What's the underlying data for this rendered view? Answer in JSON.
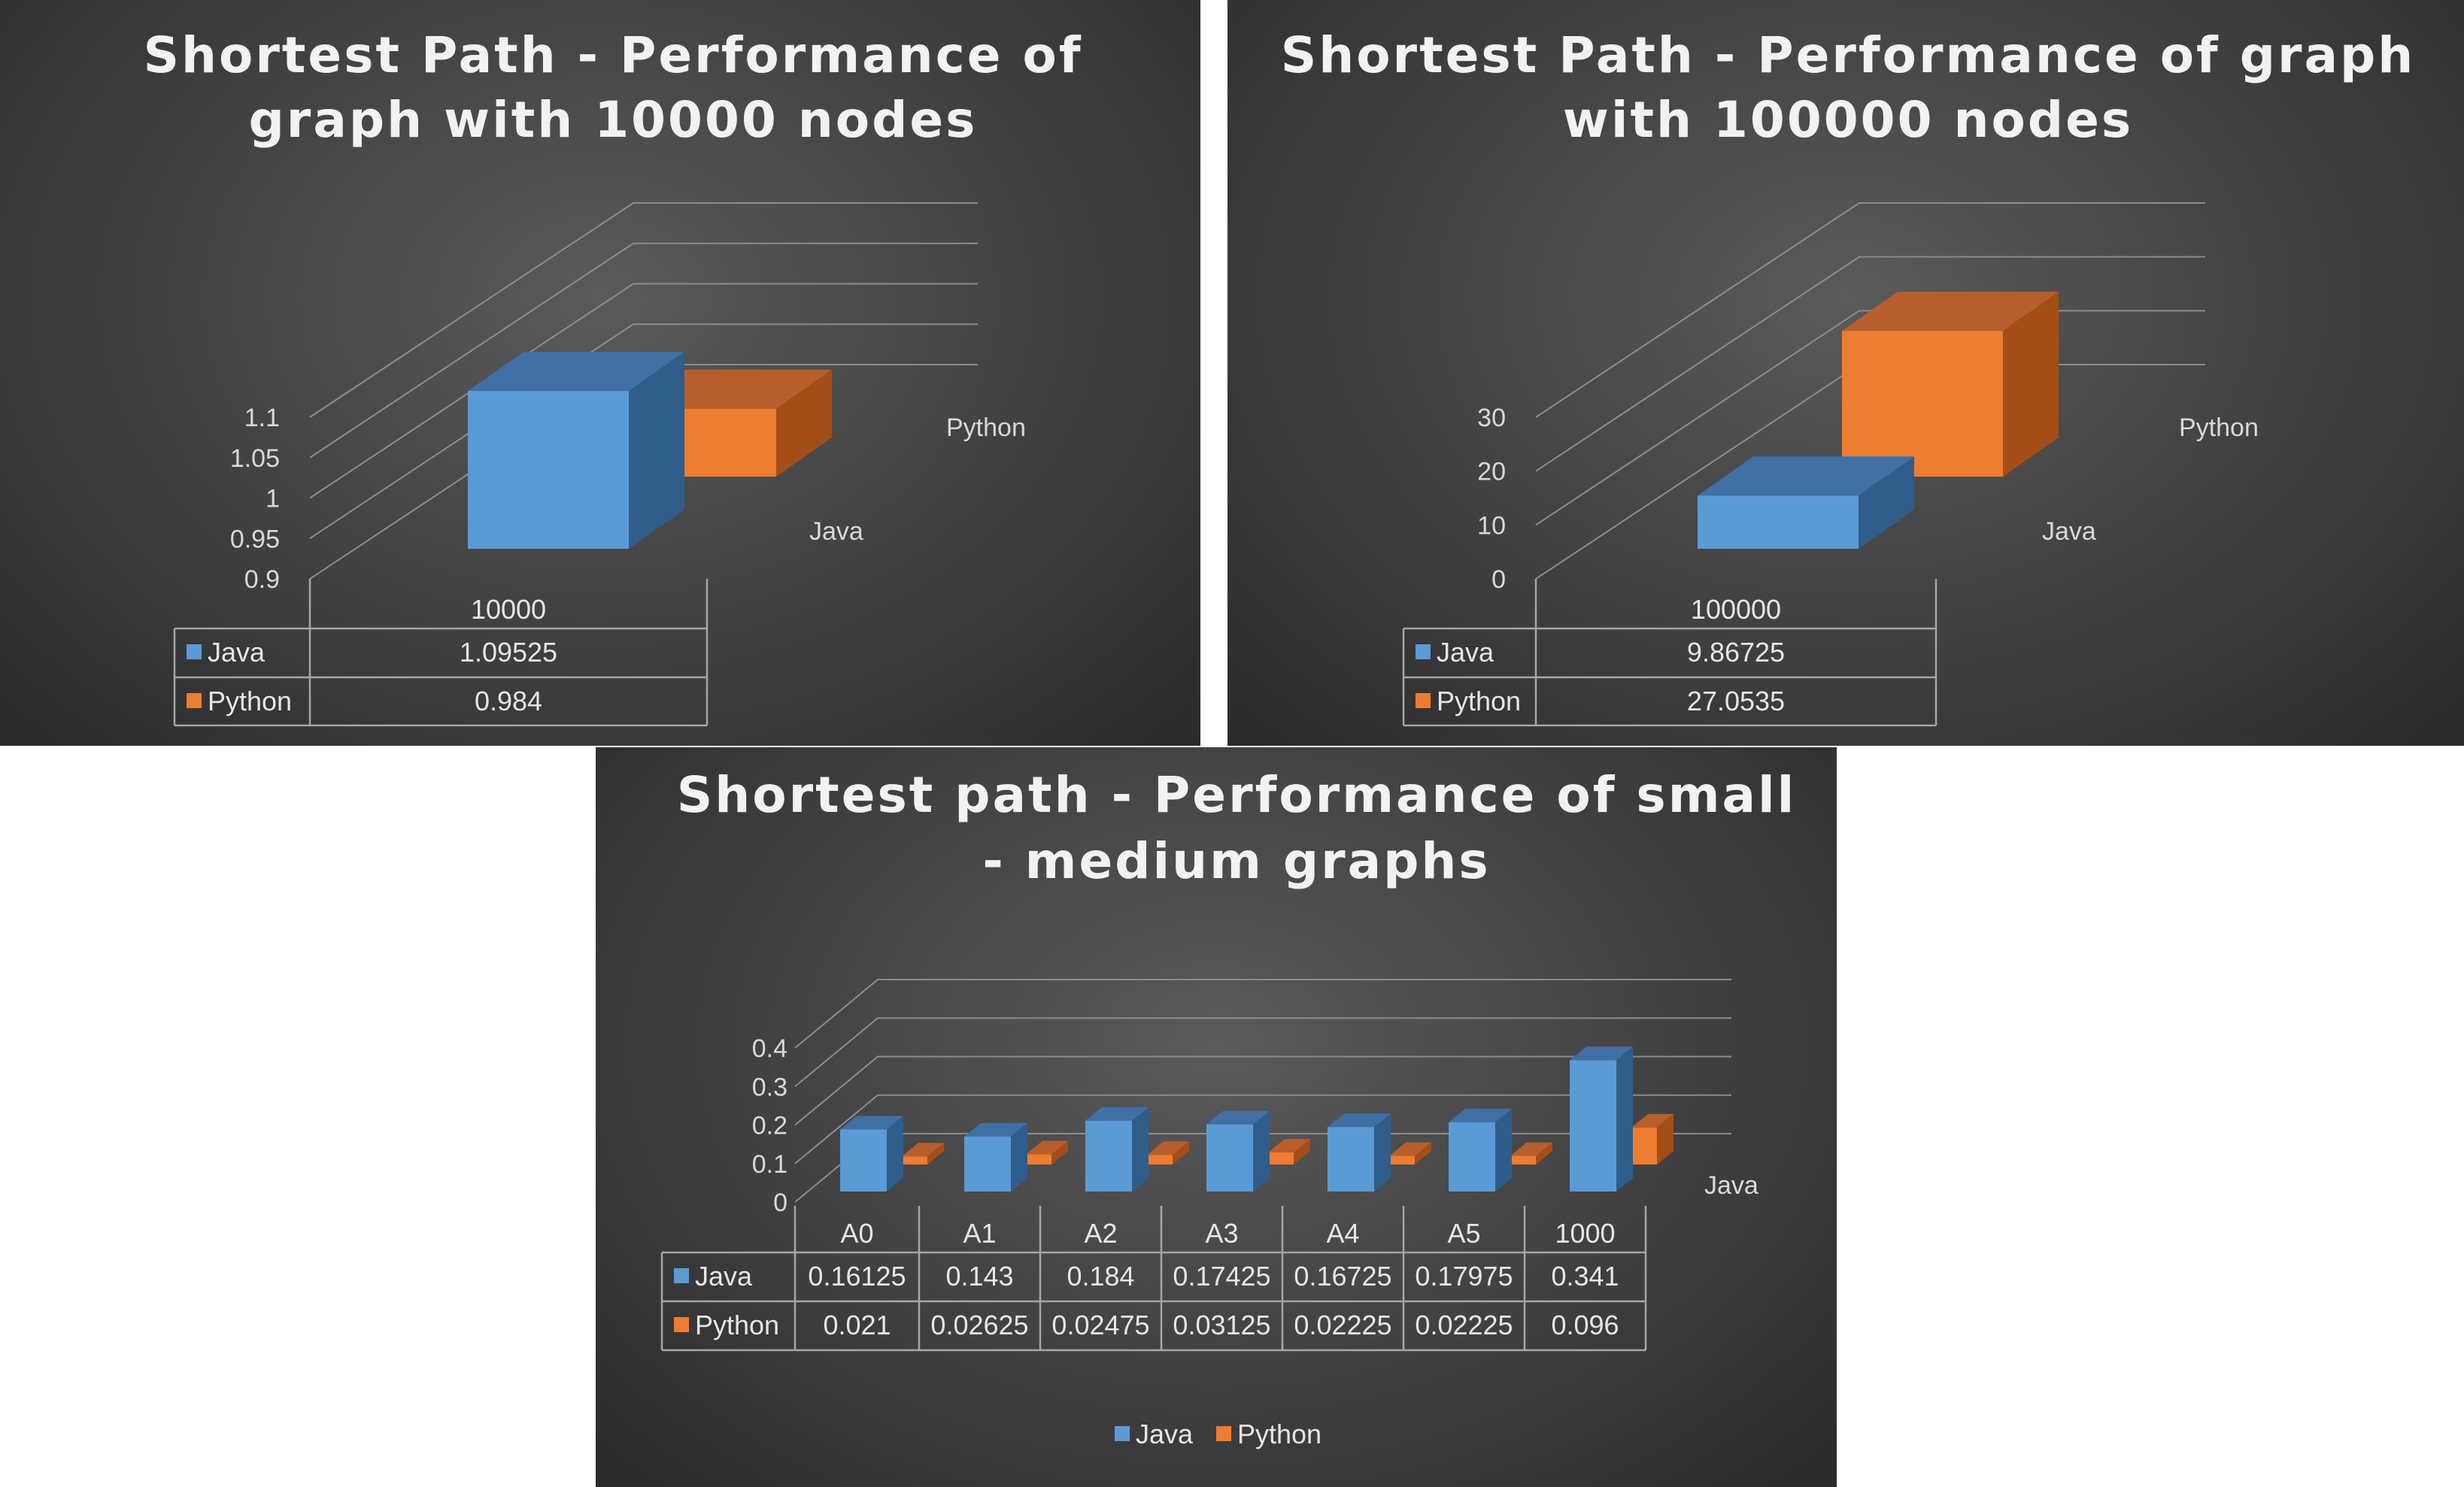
{
  "colors": {
    "java_front": "#5b9bd5",
    "java_top": "#3f6fa3",
    "java_side": "#2f5d8a",
    "python_front": "#ed7d31",
    "python_top": "#b65f2c",
    "python_side": "#a34e17"
  },
  "chart_data": [
    {
      "type": "bar",
      "title_lines": [
        "Shortest Path - Performance of",
        "graph with 10000 nodes"
      ],
      "categories": [
        "10000"
      ],
      "series": [
        {
          "name": "Java",
          "values": [
            1.09525
          ],
          "labels": [
            "1.09525"
          ]
        },
        {
          "name": "Python",
          "values": [
            0.984
          ],
          "labels": [
            "0.984"
          ]
        }
      ],
      "yticks": [
        "0.9",
        "0.95",
        "1",
        "1.05",
        "1.1"
      ],
      "ylim": [
        0.9,
        1.1
      ],
      "grid": true,
      "data_table": true
    },
    {
      "type": "bar",
      "title_lines": [
        "Shortest Path - Performance of graph",
        "with 100000 nodes"
      ],
      "categories": [
        "100000"
      ],
      "series": [
        {
          "name": "Java",
          "values": [
            9.86725
          ],
          "labels": [
            "9.86725"
          ]
        },
        {
          "name": "Python",
          "values": [
            27.0535
          ],
          "labels": [
            "27.0535"
          ]
        }
      ],
      "yticks": [
        "0",
        "10",
        "20",
        "30"
      ],
      "ylim": [
        0,
        30
      ],
      "grid": true,
      "data_table": true
    },
    {
      "type": "bar",
      "title_lines": [
        "Shortest path - Performance of small",
        "- medium graphs"
      ],
      "categories": [
        "A0",
        "A1",
        "A2",
        "A3",
        "A4",
        "A5",
        "1000"
      ],
      "series": [
        {
          "name": "Java",
          "values": [
            0.16125,
            0.143,
            0.184,
            0.17425,
            0.16725,
            0.17975,
            0.341
          ],
          "labels": [
            "0.16125",
            "0.143",
            "0.184",
            "0.17425",
            "0.16725",
            "0.17975",
            "0.341"
          ]
        },
        {
          "name": "Python",
          "values": [
            0.021,
            0.02625,
            0.02475,
            0.03125,
            0.02225,
            0.02225,
            0.096
          ],
          "labels": [
            "0.021",
            "0.02625",
            "0.02475",
            "0.03125",
            "0.02225",
            "0.02225",
            "0.096"
          ]
        }
      ],
      "yticks": [
        "0",
        "0.1",
        "0.2",
        "0.3",
        "0.4"
      ],
      "ylim": [
        0,
        0.4
      ],
      "grid": true,
      "data_table": true,
      "depth_axis_label": "Java",
      "legend": [
        "Java",
        "Python"
      ],
      "legend_position": "bottom"
    }
  ]
}
